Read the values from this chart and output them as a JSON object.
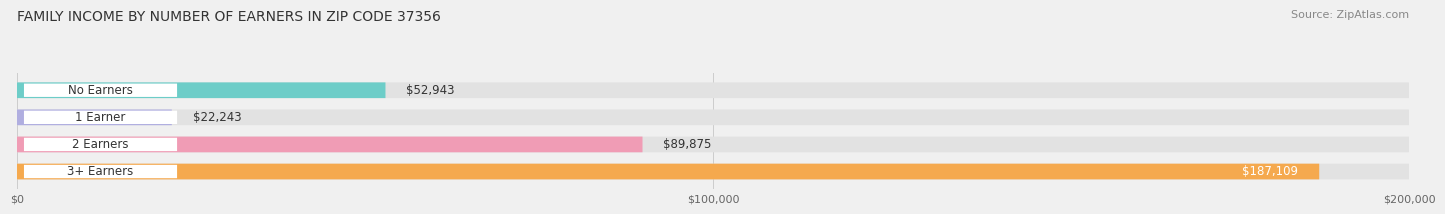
{
  "title": "FAMILY INCOME BY NUMBER OF EARNERS IN ZIP CODE 37356",
  "source": "Source: ZipAtlas.com",
  "categories": [
    "No Earners",
    "1 Earner",
    "2 Earners",
    "3+ Earners"
  ],
  "values": [
    52943,
    22243,
    89875,
    187109
  ],
  "bar_colors": [
    "#6dcdc8",
    "#b0aee0",
    "#f09cb5",
    "#f5a94e"
  ],
  "bar_label_colors": [
    "#333333",
    "#333333",
    "#333333",
    "#ffffff"
  ],
  "label_values": [
    "$52,943",
    "$22,243",
    "$89,875",
    "$187,109"
  ],
  "xlim": [
    0,
    200000
  ],
  "xticks": [
    0,
    100000,
    200000
  ],
  "xtick_labels": [
    "$0",
    "$100,000",
    "$200,000"
  ],
  "background_color": "#f0f0f0",
  "bar_bg_color": "#e2e2e2",
  "title_fontsize": 10,
  "source_fontsize": 8,
  "bar_height": 0.58,
  "label_fontsize": 8.5
}
